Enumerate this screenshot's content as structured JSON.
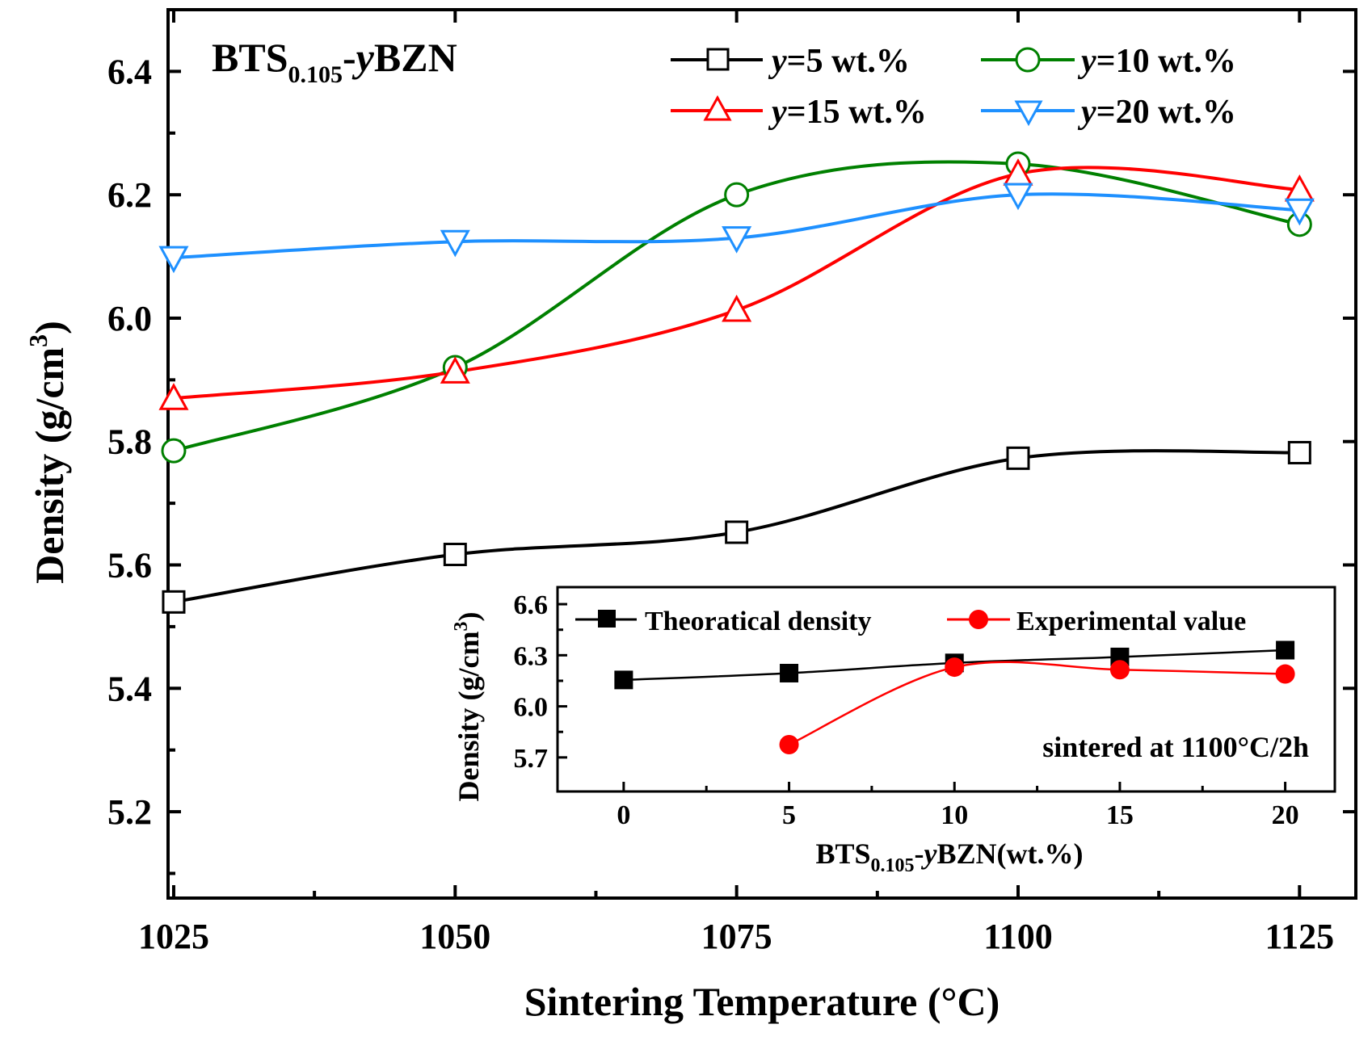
{
  "chart_data": [
    {
      "type": "line",
      "title": "BTS0.105-yBZN",
      "title_parts": {
        "main": "BTS",
        "sub": "0.105",
        "dash": "-",
        "y": "y",
        "rest": "BZN"
      },
      "xlabel": "Sintering Temperature (°C)",
      "ylabel": "Density (g/cm",
      "ylabel_sup": "3",
      "ylabel_close": ")",
      "x": [
        1025,
        1050,
        1075,
        1100,
        1125
      ],
      "xticks": [
        "1025",
        "1050",
        "1075",
        "1100",
        "1125"
      ],
      "yticks": [
        "5.2",
        "5.4",
        "5.6",
        "5.8",
        "6.0",
        "6.2",
        "6.4"
      ],
      "xlim": [
        1024.5,
        1130
      ],
      "ylim": [
        5.06,
        6.5
      ],
      "legend_position": "top-right",
      "series": [
        {
          "name": "y=5 wt.%",
          "label_y": "y",
          "label_rest": "=5 wt.%",
          "color": "#000000",
          "marker": "square-open",
          "values": [
            5.54,
            5.617,
            5.653,
            5.773,
            5.782
          ]
        },
        {
          "name": "y=10 wt.%",
          "label_y": "y",
          "label_rest": "=10 wt.%",
          "color": "#008000",
          "marker": "circle-open",
          "values": [
            5.785,
            5.92,
            6.2,
            6.25,
            6.152
          ]
        },
        {
          "name": "y=15 wt.%",
          "label_y": "y",
          "label_rest": "=15 wt.%",
          "color": "#ff0000",
          "marker": "triangle-up-open",
          "values": [
            5.87,
            5.913,
            6.013,
            6.234,
            6.208
          ]
        },
        {
          "name": "y=20 wt.%",
          "label_y": "y",
          "label_rest": "=20 wt.%",
          "color": "#1e90ff",
          "marker": "triangle-down-open",
          "values": [
            6.098,
            6.124,
            6.13,
            6.2,
            6.175
          ]
        }
      ]
    },
    {
      "type": "line",
      "title": "inset",
      "xlabel_parts": {
        "main": "BTS",
        "sub": "0.105",
        "dash": "-",
        "y": "y",
        "rest": "BZN(wt.%)"
      },
      "ylabel": "Density (g/cm",
      "ylabel_sup": "3",
      "ylabel_close": ")",
      "xticks": [
        "0",
        "5",
        "10",
        "15",
        "20"
      ],
      "yticks": [
        "5.7",
        "6.0",
        "6.3",
        "6.6"
      ],
      "xlim": [
        -2,
        21.5
      ],
      "ylim": [
        5.5,
        6.7
      ],
      "annotation": "sintered at 1100°C/2h",
      "legend_position": "top",
      "series": [
        {
          "name": "Theoratical density",
          "color": "#000000",
          "marker": "square-filled",
          "x": [
            0,
            5,
            10,
            15,
            20
          ],
          "values": [
            6.155,
            6.195,
            6.255,
            6.29,
            6.33
          ]
        },
        {
          "name": "Experimental value",
          "color": "#ff0000",
          "marker": "circle-filled",
          "x": [
            5,
            10,
            15,
            20
          ],
          "values": [
            5.775,
            6.23,
            6.215,
            6.19
          ]
        }
      ]
    }
  ]
}
